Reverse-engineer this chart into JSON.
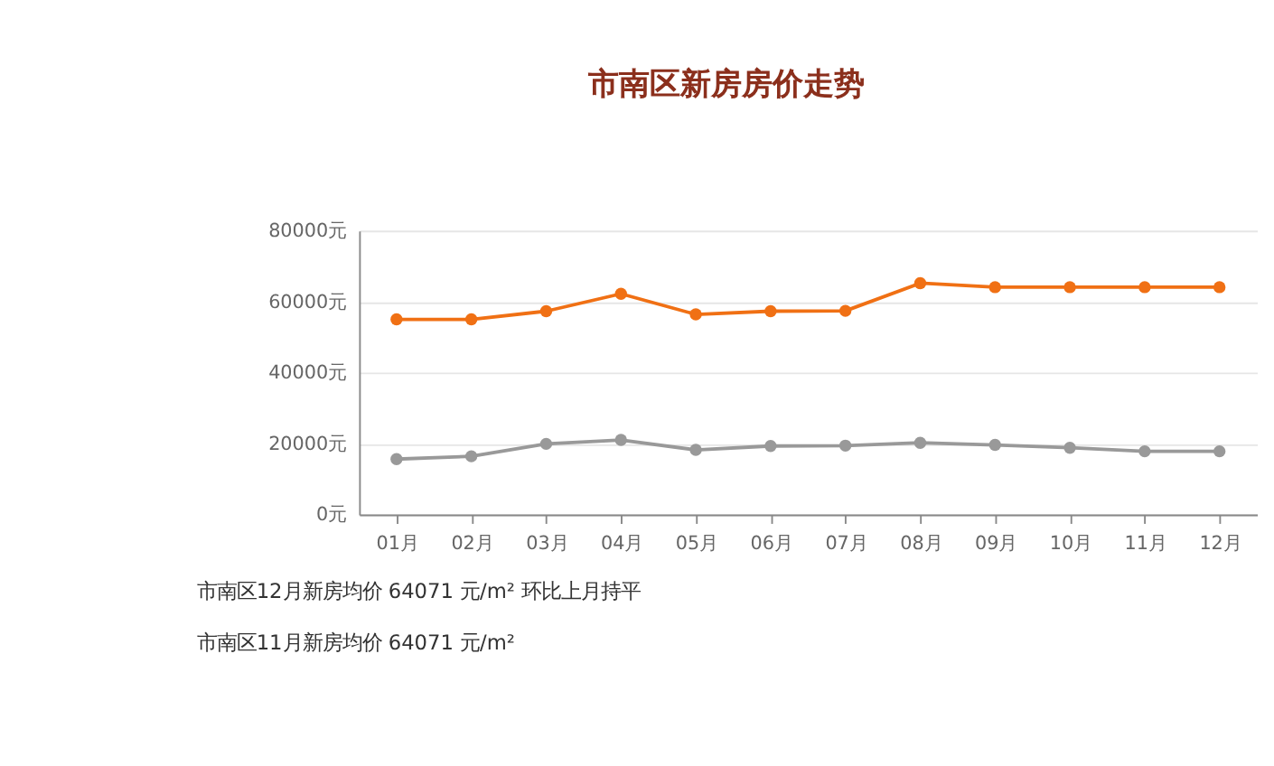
{
  "chart_data": {
    "type": "line",
    "title": "市南区新房房价走势",
    "categories": [
      "01月",
      "02月",
      "03月",
      "04月",
      "05月",
      "06月",
      "07月",
      "08月",
      "09月",
      "10月",
      "11月",
      "12月"
    ],
    "series": [
      {
        "color": "#f07014",
        "values": [
          55000,
          55000,
          57300,
          62200,
          56400,
          57300,
          57400,
          65200,
          64071,
          64071,
          64071,
          64071
        ]
      },
      {
        "color": "#999999",
        "values": [
          15600,
          16400,
          19900,
          21000,
          18200,
          19300,
          19400,
          20200,
          19600,
          18800,
          17800,
          17800
        ]
      }
    ],
    "ylim": [
      0,
      80000
    ],
    "yticks": [
      {
        "value": 0,
        "label": "0元"
      },
      {
        "value": 20000,
        "label": "20000元"
      },
      {
        "value": 40000,
        "label": "40000元"
      },
      {
        "value": 60000,
        "label": "60000元"
      },
      {
        "value": 80000,
        "label": "80000元"
      }
    ],
    "grid": "y",
    "marker": "circle",
    "line_style": "solid",
    "annotations": [
      "市南区12月新房均价 64071 元/m² 环比上月持平",
      "市南区11月新房均价 64071 元/m²"
    ]
  }
}
